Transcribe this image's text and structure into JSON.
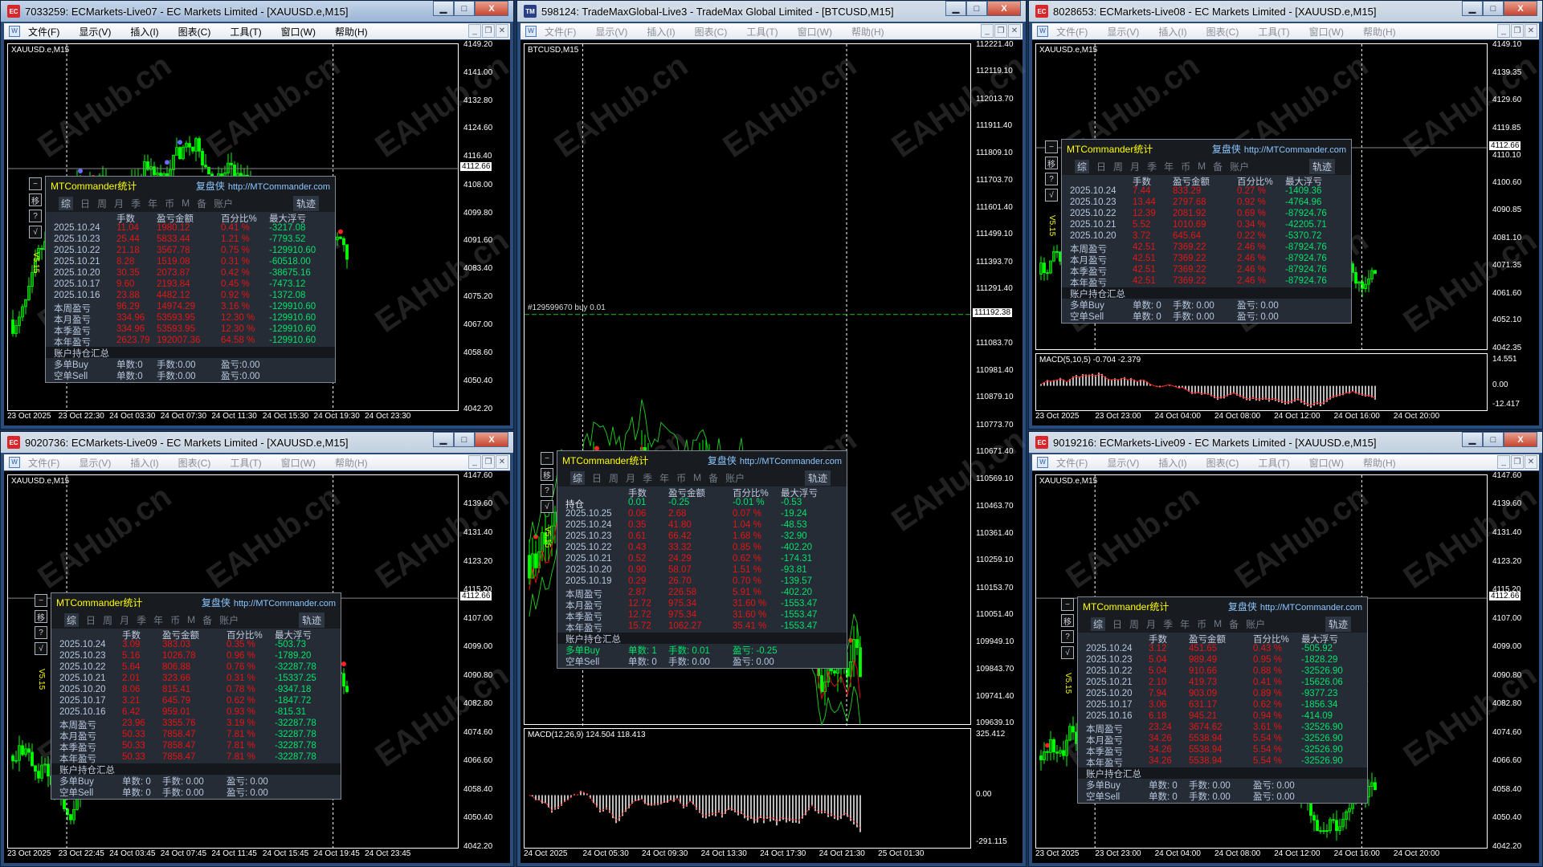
{
  "menu": [
    "文件(F)",
    "显示(V)",
    "插入(I)",
    "图表(C)",
    "工具(T)",
    "窗口(W)",
    "帮助(H)"
  ],
  "watermark": "EAHub.cn",
  "panel_common": {
    "title": "MTCommander统计",
    "brand": "复盘侠",
    "url": "http://MTCommander.com",
    "tabs": [
      "综",
      "日",
      "周",
      "月",
      "季",
      "年",
      "币",
      "M",
      "备",
      "账户"
    ],
    "track": "轨迹",
    "columns": [
      "手数",
      "盈亏金额",
      "百分比%",
      "最大浮亏"
    ],
    "summary_title": "账户持仓汇总",
    "side_buttons": [
      "−",
      "移",
      "?",
      "√"
    ],
    "version": "V5.15"
  },
  "colors": {
    "bull": "#00ff00",
    "loss": "#e81414",
    "profit": "#00e36a",
    "title": "#ffff00",
    "link": "#8cc6ff"
  },
  "windows": [
    {
      "title": "7033259: ECMarkets-Live07 - EC Markets Limited - [XAUUSD.e,M15]",
      "active": true,
      "icon": "ec-logo-icon",
      "icon_text": "EC",
      "symbol": "XAUUSD.e,M15",
      "price_ticks": [
        "4149.20",
        "4141.00",
        "4132.80",
        "4124.60",
        "4116.40",
        "4108.00",
        "4099.80",
        "4091.60",
        "4083.40",
        "4075.20",
        "4067.00",
        "4058.60",
        "4050.40",
        "4042.20"
      ],
      "current_price": "4112.66",
      "time_ticks": [
        "23 Oct 2025",
        "23 Oct 22:30",
        "24 Oct 03:30",
        "24 Oct 07:30",
        "24 Oct 11:30",
        "24 Oct 15:30",
        "24 Oct 19:30",
        "24 Oct 23:30"
      ],
      "panel": {
        "rows": [
          {
            "label": "2025.10.24",
            "lots": "11.04",
            "amount": "1980.12",
            "pct": "0.41 %",
            "dd": "-3217.08"
          },
          {
            "label": "2025.10.23",
            "lots": "25.44",
            "amount": "5833.44",
            "pct": "1.21 %",
            "dd": "-7793.52"
          },
          {
            "label": "2025.10.22",
            "lots": "21.18",
            "amount": "3567.78",
            "pct": "0.75 %",
            "dd": "-129910.60"
          },
          {
            "label": "2025.10.21",
            "lots": "8.28",
            "amount": "1519.08",
            "pct": "0.31 %",
            "dd": "-60518.00"
          },
          {
            "label": "2025.10.20",
            "lots": "30.35",
            "amount": "2073.87",
            "pct": "0.42 %",
            "dd": "-38675.16"
          },
          {
            "label": "2025.10.17",
            "lots": "9.60",
            "amount": "2193.84",
            "pct": "0.45 %",
            "dd": "-7473.12"
          },
          {
            "label": "2025.10.16",
            "lots": "23.88",
            "amount": "4482.12",
            "pct": "0.92 %",
            "dd": "-1372.08"
          },
          {
            "label": "本周盈亏",
            "lots": "96.29",
            "amount": "14974.29",
            "pct": "3.16 %",
            "dd": "-129910.60"
          },
          {
            "label": "本月盈亏",
            "lots": "334.96",
            "amount": "53593.95",
            "pct": "12.30 %",
            "dd": "-129910.60"
          },
          {
            "label": "本季盈亏",
            "lots": "334.96",
            "amount": "53593.95",
            "pct": "12.30 %",
            "dd": "-129910.60"
          },
          {
            "label": "本年盈亏",
            "lots": "2623.79",
            "amount": "192007.36",
            "pct": "64.58 %",
            "dd": "-129910.60"
          }
        ],
        "positions": [
          {
            "label": "多单Buy",
            "orders": "单数:0",
            "lots": "手数:0.00",
            "pnl": "盈亏:0.00",
            "tone": "normal"
          },
          {
            "label": "空单Sell",
            "orders": "单数:0",
            "lots": "手数:0.00",
            "pnl": "盈亏:0.00",
            "tone": "normal"
          }
        ]
      }
    },
    {
      "title": "598124: TradeMaxGlobal-Live3 - TradeMax Global Limited - [BTCUSD,M15]",
      "active": false,
      "icon": "trademax-logo-icon",
      "icon_text": "TM",
      "symbol": "BTCUSD,M15",
      "price_ticks": [
        "112221.40",
        "112119.10",
        "112013.70",
        "111911.40",
        "111809.10",
        "111703.70",
        "111601.40",
        "111499.10",
        "111393.70",
        "111291.40",
        "111192.38",
        "111083.70",
        "110981.40",
        "110879.10",
        "110773.70",
        "110671.40",
        "110569.10",
        "110463.70",
        "110361.40",
        "110259.10",
        "110153.70",
        "110051.40",
        "109949.10",
        "109843.70",
        "109741.40",
        "109639.10"
      ],
      "current_price": "111192.38",
      "order_label": "#129599670 buy 0.01",
      "time_ticks": [
        "24 Oct 2025",
        "24 Oct 05:30",
        "24 Oct 09:30",
        "24 Oct 13:30",
        "24 Oct 17:30",
        "24 Oct 21:30",
        "25 Oct 01:30"
      ],
      "indicator": {
        "label": "MACD(12,26,9) 124.504 118.413",
        "ticks": [
          "325.412",
          "0.00",
          "-291.115"
        ]
      },
      "panel": {
        "rows": [
          {
            "label": "持仓",
            "lots": "0.01",
            "amount": "-0.25",
            "pct": "-0.01 %",
            "dd": "-0.53",
            "tone": "green"
          },
          {
            "label": "2025.10.25",
            "lots": "0.06",
            "amount": "2.68",
            "pct": "0.07 %",
            "dd": "-19.24"
          },
          {
            "label": "2025.10.24",
            "lots": "0.35",
            "amount": "41.80",
            "pct": "1.04 %",
            "dd": "-48.53"
          },
          {
            "label": "2025.10.23",
            "lots": "0.61",
            "amount": "66.42",
            "pct": "1.68 %",
            "dd": "-32.90"
          },
          {
            "label": "2025.10.22",
            "lots": "0.43",
            "amount": "33.32",
            "pct": "0.85 %",
            "dd": "-402.20"
          },
          {
            "label": "2025.10.21",
            "lots": "0.52",
            "amount": "24.29",
            "pct": "0.62 %",
            "dd": "-174.31"
          },
          {
            "label": "2025.10.20",
            "lots": "0.90",
            "amount": "58.07",
            "pct": "1.51 %",
            "dd": "-93.81"
          },
          {
            "label": "2025.10.19",
            "lots": "0.29",
            "amount": "26.70",
            "pct": "0.70 %",
            "dd": "-139.57"
          },
          {
            "label": "本周盈亏",
            "lots": "2.87",
            "amount": "226.58",
            "pct": "5.91 %",
            "dd": "-402.20"
          },
          {
            "label": "本月盈亏",
            "lots": "12.72",
            "amount": "975.34",
            "pct": "31.60 %",
            "dd": "-1553.47"
          },
          {
            "label": "本季盈亏",
            "lots": "12.72",
            "amount": "975.34",
            "pct": "31.60 %",
            "dd": "-1553.47"
          },
          {
            "label": "本年盈亏",
            "lots": "15.72",
            "amount": "1062.27",
            "pct": "35.41 %",
            "dd": "-1553.47"
          }
        ],
        "positions": [
          {
            "label": "多单Buy",
            "orders": "单数: 1",
            "lots": "手数: 0.01",
            "pnl": "盈亏: -0.25",
            "tone": "green"
          },
          {
            "label": "空单Sell",
            "orders": "单数: 0",
            "lots": "手数: 0.00",
            "pnl": "盈亏: 0.00",
            "tone": "normal"
          }
        ]
      }
    },
    {
      "title": "8028653: ECMarkets-Live08 - EC Markets Limited - [XAUUSD.e,M15]",
      "active": false,
      "icon": "ec-logo-icon",
      "icon_text": "EC",
      "symbol": "XAUUSD.e,M15",
      "price_ticks": [
        "4149.10",
        "4139.35",
        "4129.60",
        "4119.85",
        "4110.10",
        "4100.60",
        "4090.85",
        "4081.10",
        "4071.35",
        "4061.60",
        "4052.10",
        "4042.35"
      ],
      "current_price": "4112.66",
      "time_ticks": [
        "23 Oct 2025",
        "23 Oct 23:00",
        "24 Oct 04:00",
        "24 Oct 08:00",
        "24 Oct 12:00",
        "24 Oct 16:00",
        "24 Oct 20:00"
      ],
      "indicator": {
        "label": "MACD(5,10,5) -0.704 -2.379",
        "ticks": [
          "14.551",
          "0.00",
          "-12.417"
        ]
      },
      "panel": {
        "rows": [
          {
            "label": "2025.10.24",
            "lots": "7.44",
            "amount": "833.29",
            "pct": "0.27 %",
            "dd": "-1409.36"
          },
          {
            "label": "2025.10.23",
            "lots": "13.44",
            "amount": "2797.68",
            "pct": "0.92 %",
            "dd": "-4764.96"
          },
          {
            "label": "2025.10.22",
            "lots": "12.39",
            "amount": "2081.92",
            "pct": "0.69 %",
            "dd": "-87924.76"
          },
          {
            "label": "2025.10.21",
            "lots": "5.52",
            "amount": "1010.69",
            "pct": "0.34 %",
            "dd": "-42205.71"
          },
          {
            "label": "2025.10.20",
            "lots": "3.72",
            "amount": "645.64",
            "pct": "0.22 %",
            "dd": "-5370.72"
          },
          {
            "label": "本周盈亏",
            "lots": "42.51",
            "amount": "7369.22",
            "pct": "2.46 %",
            "dd": "-87924.76"
          },
          {
            "label": "本月盈亏",
            "lots": "42.51",
            "amount": "7369.22",
            "pct": "2.46 %",
            "dd": "-87924.76"
          },
          {
            "label": "本季盈亏",
            "lots": "42.51",
            "amount": "7369.22",
            "pct": "2.46 %",
            "dd": "-87924.76"
          },
          {
            "label": "本年盈亏",
            "lots": "42.51",
            "amount": "7369.22",
            "pct": "2.46 %",
            "dd": "-87924.76"
          }
        ],
        "positions": [
          {
            "label": "多单Buy",
            "orders": "单数: 0",
            "lots": "手数: 0.00",
            "pnl": "盈亏: 0.00",
            "tone": "normal"
          },
          {
            "label": "空单Sell",
            "orders": "单数: 0",
            "lots": "手数: 0.00",
            "pnl": "盈亏: 0.00",
            "tone": "normal"
          }
        ]
      }
    },
    {
      "title": "9020736: ECMarkets-Live09 - EC Markets Limited - [XAUUSD.e,M15]",
      "active": false,
      "icon": "ec-logo-icon",
      "icon_text": "EC",
      "symbol": "XAUUSD.e,M15",
      "price_ticks": [
        "4147.60",
        "4139.60",
        "4131.40",
        "4123.20",
        "4115.20",
        "4107.00",
        "4099.00",
        "4090.80",
        "4082.80",
        "4074.60",
        "4066.60",
        "4058.40",
        "4050.40",
        "4042.20"
      ],
      "current_price": "4112.66",
      "time_ticks": [
        "23 Oct 2025",
        "23 Oct 22:45",
        "24 Oct 03:45",
        "24 Oct 07:45",
        "24 Oct 11:45",
        "24 Oct 15:45",
        "24 Oct 19:45",
        "24 Oct 23:45"
      ],
      "panel": {
        "rows": [
          {
            "label": "2025.10.24",
            "lots": "3.09",
            "amount": "383.03",
            "pct": "0.35 %",
            "dd": "-503.73"
          },
          {
            "label": "2025.10.23",
            "lots": "5.16",
            "amount": "1026.78",
            "pct": "0.96 %",
            "dd": "-1789.20"
          },
          {
            "label": "2025.10.22",
            "lots": "5.64",
            "amount": "806.88",
            "pct": "0.76 %",
            "dd": "-32287.78"
          },
          {
            "label": "2025.10.21",
            "lots": "2.01",
            "amount": "323.66",
            "pct": "0.31 %",
            "dd": "-15337.25"
          },
          {
            "label": "2025.10.20",
            "lots": "8.06",
            "amount": "815.41",
            "pct": "0.78 %",
            "dd": "-9347.18"
          },
          {
            "label": "2025.10.17",
            "lots": "3.21",
            "amount": "645.79",
            "pct": "0.62 %",
            "dd": "-1847.72"
          },
          {
            "label": "2025.10.16",
            "lots": "6.42",
            "amount": "959.01",
            "pct": "0.93 %",
            "dd": "-815.31"
          },
          {
            "label": "本周盈亏",
            "lots": "23.96",
            "amount": "3355.76",
            "pct": "3.19 %",
            "dd": "-32287.78"
          },
          {
            "label": "本月盈亏",
            "lots": "50.33",
            "amount": "7858.47",
            "pct": "7.81 %",
            "dd": "-32287.78"
          },
          {
            "label": "本季盈亏",
            "lots": "50.33",
            "amount": "7858.47",
            "pct": "7.81 %",
            "dd": "-32287.78"
          },
          {
            "label": "本年盈亏",
            "lots": "50.33",
            "amount": "7858.47",
            "pct": "7.81 %",
            "dd": "-32287.78"
          }
        ],
        "positions": [
          {
            "label": "多单Buy",
            "orders": "单数: 0",
            "lots": "手数: 0.00",
            "pnl": "盈亏: 0.00",
            "tone": "normal"
          },
          {
            "label": "空单Sell",
            "orders": "单数: 0",
            "lots": "手数: 0.00",
            "pnl": "盈亏: 0.00",
            "tone": "normal"
          }
        ]
      }
    },
    {
      "title": "9019216: ECMarkets-Live09 - EC Markets Limited - [XAUUSD.e,M15]",
      "active": false,
      "icon": "ec-logo-icon",
      "icon_text": "EC",
      "symbol": "XAUUSD.e,M15",
      "price_ticks": [
        "4147.60",
        "4139.60",
        "4131.40",
        "4123.20",
        "4115.20",
        "4107.00",
        "4099.00",
        "4090.80",
        "4082.80",
        "4074.60",
        "4066.60",
        "4058.40",
        "4050.40",
        "4042.20"
      ],
      "current_price": "4112.66",
      "time_ticks": [
        "23 Oct 2025",
        "23 Oct 23:00",
        "24 Oct 04:00",
        "24 Oct 08:00",
        "24 Oct 12:00",
        "24 Oct 16:00",
        "24 Oct 20:00"
      ],
      "panel": {
        "rows": [
          {
            "label": "2025.10.24",
            "lots": "3.12",
            "amount": "451.65",
            "pct": "0.43 %",
            "dd": "-505.92"
          },
          {
            "label": "2025.10.23",
            "lots": "5.04",
            "amount": "989.49",
            "pct": "0.95 %",
            "dd": "-1828.29"
          },
          {
            "label": "2025.10.22",
            "lots": "5.04",
            "amount": "910.66",
            "pct": "0.88 %",
            "dd": "-32526.90"
          },
          {
            "label": "2025.10.21",
            "lots": "2.10",
            "amount": "419.73",
            "pct": "0.41 %",
            "dd": "-15626.06"
          },
          {
            "label": "2025.10.20",
            "lots": "7.94",
            "amount": "903.09",
            "pct": "0.89 %",
            "dd": "-9377.23"
          },
          {
            "label": "2025.10.17",
            "lots": "3.06",
            "amount": "631.17",
            "pct": "0.62 %",
            "dd": "-1856.34"
          },
          {
            "label": "2025.10.16",
            "lots": "6.18",
            "amount": "945.21",
            "pct": "0.94 %",
            "dd": "-414.09"
          },
          {
            "label": "本周盈亏",
            "lots": "23.24",
            "amount": "3674.62",
            "pct": "3.61 %",
            "dd": "-32526.90"
          },
          {
            "label": "本月盈亏",
            "lots": "34.26",
            "amount": "5538.94",
            "pct": "5.54 %",
            "dd": "-32526.90"
          },
          {
            "label": "本季盈亏",
            "lots": "34.26",
            "amount": "5538.94",
            "pct": "5.54 %",
            "dd": "-32526.90"
          },
          {
            "label": "本年盈亏",
            "lots": "34.26",
            "amount": "5538.94",
            "pct": "5.54 %",
            "dd": "-32526.90"
          }
        ],
        "positions": [
          {
            "label": "多单Buy",
            "orders": "单数: 0",
            "lots": "手数: 0.00",
            "pnl": "盈亏: 0.00",
            "tone": "normal"
          },
          {
            "label": "空单Sell",
            "orders": "单数: 0",
            "lots": "手数: 0.00",
            "pnl": "盈亏: 0.00",
            "tone": "normal"
          }
        ]
      }
    }
  ]
}
